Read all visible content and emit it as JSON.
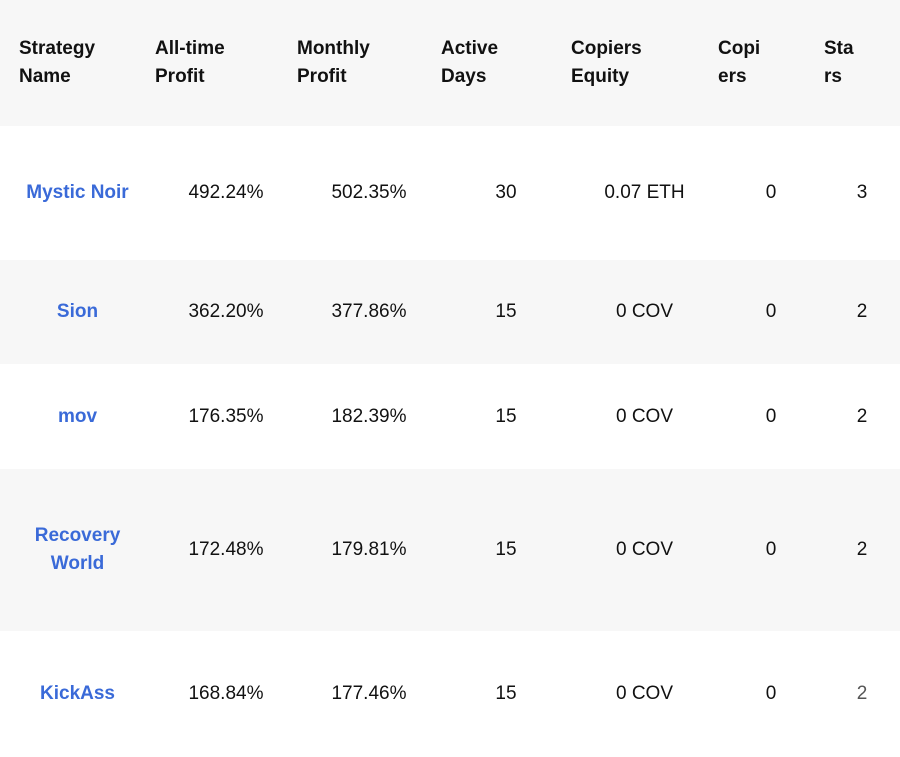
{
  "table": {
    "headers": [
      [
        "Strategy",
        "Name"
      ],
      [
        "All-time",
        "Profit"
      ],
      [
        "Monthly",
        "Profit"
      ],
      [
        "Active",
        "Days"
      ],
      [
        "Copiers",
        "Equity"
      ],
      [
        "Copi",
        "ers"
      ],
      [
        "Sta",
        "rs"
      ]
    ],
    "rows": [
      {
        "name": "Mystic Noir",
        "all_time_profit": "492.24%",
        "monthly_profit": "502.35%",
        "active_days": "30",
        "copiers_equity": "0.07 ETH",
        "copiers": "0",
        "stars": "3"
      },
      {
        "name": "Sion",
        "all_time_profit": "362.20%",
        "monthly_profit": "377.86%",
        "active_days": "15",
        "copiers_equity": "0 COV",
        "copiers": "0",
        "stars": "2"
      },
      {
        "name": "mov",
        "all_time_profit": "176.35%",
        "monthly_profit": "182.39%",
        "active_days": "15",
        "copiers_equity": "0 COV",
        "copiers": "0",
        "stars": "2"
      },
      {
        "name": "Recovery World",
        "all_time_profit": "172.48%",
        "monthly_profit": "179.81%",
        "active_days": "15",
        "copiers_equity": "0 COV",
        "copiers": "0",
        "stars": "2"
      },
      {
        "name": "KickAss",
        "all_time_profit": "168.84%",
        "monthly_profit": "177.46%",
        "active_days": "15",
        "copiers_equity": "0 COV",
        "copiers": "0",
        "stars": "2"
      }
    ]
  },
  "colors": {
    "link": "#3a6ad8",
    "header_bg": "#f7f7f7",
    "stripe_bg": "#f7f7f7"
  }
}
